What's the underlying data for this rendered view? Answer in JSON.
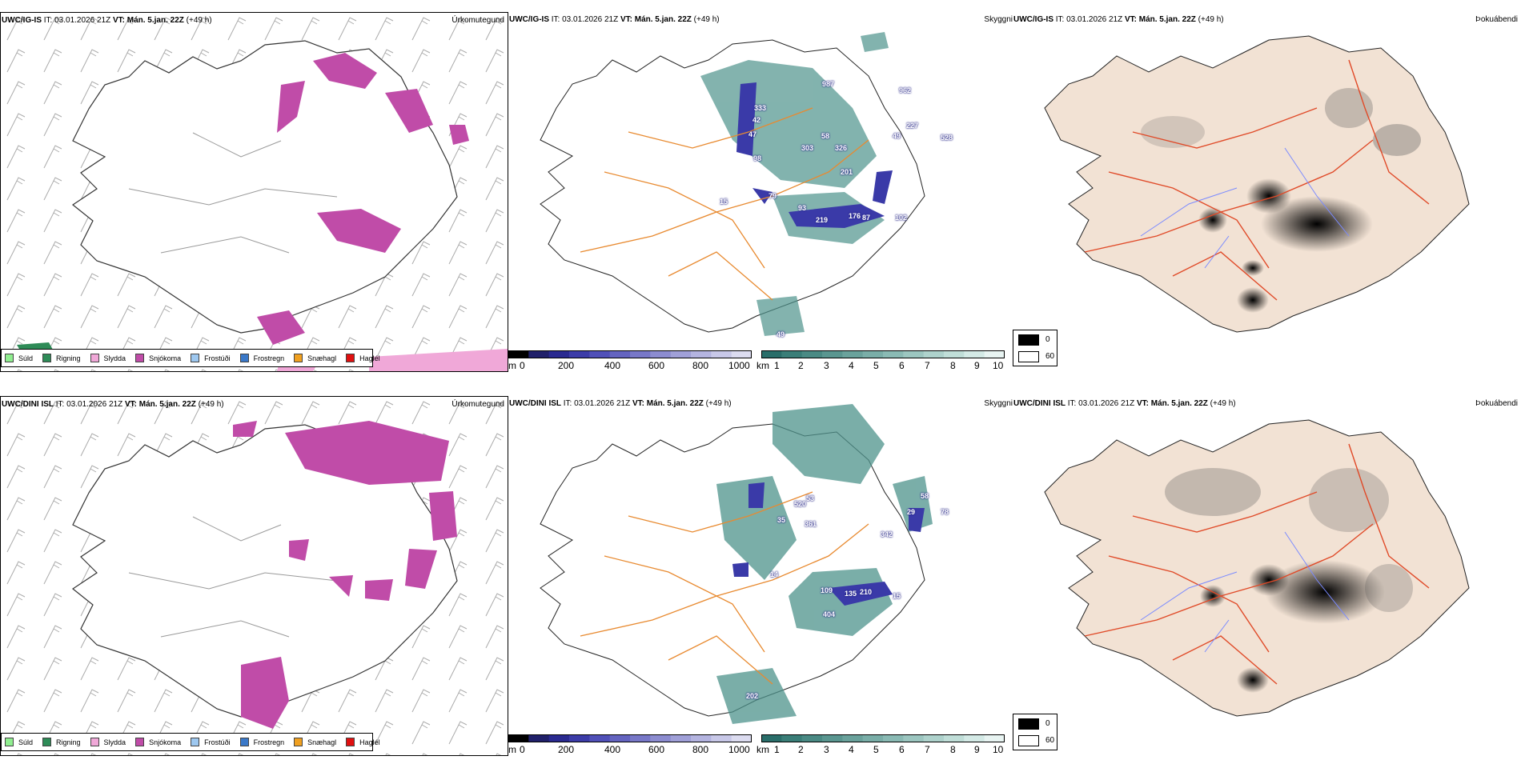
{
  "rows": [
    {
      "model": "UWC/IG-IS",
      "it_label": "IT:",
      "it_value": "03.01.2026 21Z",
      "vt_label": "VT:",
      "vt_value": "Mán. 5.jan. 22Z",
      "lead": "(+49 h)",
      "vis_numbers": [
        "987",
        "962",
        "333",
        "227",
        "42",
        "303",
        "58",
        "49",
        "47",
        "98",
        "326",
        "201",
        "528",
        "15",
        "79",
        "93",
        "219",
        "176",
        "87",
        "102",
        "49"
      ]
    },
    {
      "model": "UWC/DINI ISL",
      "it_label": "IT:",
      "it_value": "03.01.2026 21Z",
      "vt_label": "VT:",
      "vt_value": "Mán. 5.jan. 22Z",
      "lead": "(+49 h)",
      "vis_numbers": [
        "58",
        "520",
        "53",
        "361",
        "35",
        "29",
        "78",
        "342",
        "14",
        "109",
        "135",
        "210",
        "15",
        "404",
        "202"
      ]
    }
  ],
  "panel_types": {
    "precip": "Úrkomutegund",
    "visibility": "Skyggni",
    "fog": "Þokuábendi"
  },
  "precip_legend": [
    {
      "label": "Súld",
      "color": "#90ee90"
    },
    {
      "label": "Rigning",
      "color": "#2e8b57"
    },
    {
      "label": "Slydda",
      "color": "#f0a8d8"
    },
    {
      "label": "Snjókoma",
      "color": "#c04ca8"
    },
    {
      "label": "Frostúði",
      "color": "#9ec8f0"
    },
    {
      "label": "Frostregn",
      "color": "#3a78c8"
    },
    {
      "label": "Snæhagl",
      "color": "#f0a020"
    },
    {
      "label": "Haglél",
      "color": "#e01010"
    }
  ],
  "visibility_colorbars": {
    "m": {
      "unit": "m",
      "ticks": [
        "0",
        "200",
        "400",
        "600",
        "800",
        "1000"
      ],
      "colors": [
        "#000000",
        "#20206a",
        "#2a2a90",
        "#3c3ca8",
        "#5050b8",
        "#6464c0",
        "#7878c8",
        "#8c8cd0",
        "#a0a0d8",
        "#b4b4e0",
        "#c8c8e8",
        "#dcdcf0"
      ]
    },
    "km": {
      "unit": "km",
      "ticks": [
        "1",
        "2",
        "3",
        "4",
        "5",
        "6",
        "7",
        "8",
        "9",
        "10"
      ],
      "colors": [
        "#2a6e6a",
        "#3a7e78",
        "#4a8a84",
        "#5a9690",
        "#6aa29c",
        "#7aaea8",
        "#8abab4",
        "#9cc6c0",
        "#aed2cc",
        "#c0ded8",
        "#d4eae6",
        "#e8f4f2"
      ]
    }
  },
  "fog_legend": {
    "values": [
      "0",
      "60"
    ],
    "colors": [
      "#000000",
      "#ffffff"
    ]
  },
  "colors": {
    "snow": "#c04ca8",
    "rain": "#2e8b57",
    "sleet": "#f0a8d8",
    "vis_dark": "#3a3aa8",
    "vis_teal": "#4e938c",
    "road": "#e88a30",
    "fog_land": "#f2e2d4",
    "fog_road": "#e04a28",
    "river": "#7a8aff"
  }
}
